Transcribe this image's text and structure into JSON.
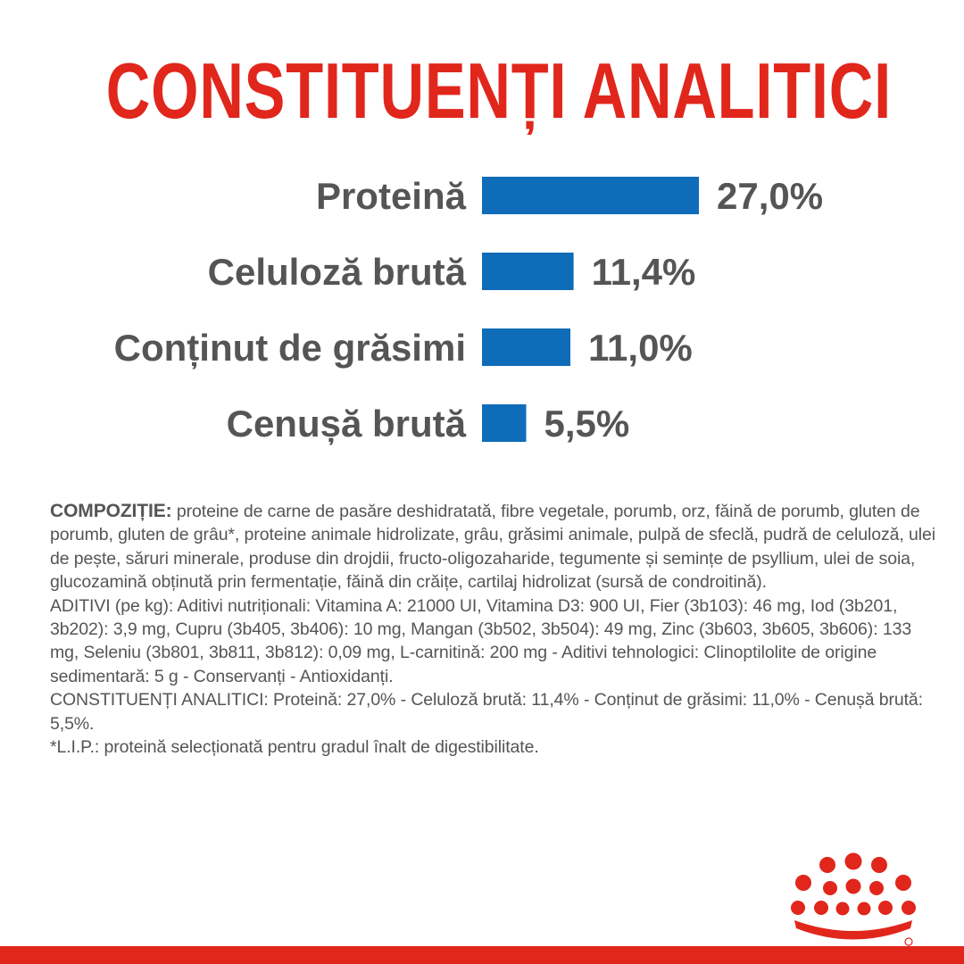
{
  "title": "CONSTITUENȚI ANALITICI",
  "colors": {
    "title": "#e1261c",
    "bar": "#0f6cb8",
    "text": "#555555",
    "brand_red": "#e1261c"
  },
  "chart_data": {
    "type": "bar",
    "orientation": "horizontal",
    "title": "CONSTITUENȚI ANALITICI",
    "categories": [
      "Proteină",
      "Celuloză brută",
      "Conținut de grăsimi",
      "Cenușă brută"
    ],
    "values": [
      27.0,
      11.4,
      11.0,
      5.5
    ],
    "value_labels": [
      "27,0%",
      "11,4%",
      "11,0%",
      "5,5%"
    ],
    "unit": "%",
    "xlabel": "",
    "ylabel": "",
    "grid": false,
    "legend": "none"
  },
  "composition": {
    "heading": "COMPOZIȚIE:",
    "ingredients": " proteine de carne de pasăre deshidratată, fibre vegetale, porumb, orz, făină de porumb, gluten de porumb, gluten de grâu*, proteine animale hidrolizate, grâu, grăsimi animale, pulpă de sfeclă, pudră de celuloză, ulei de pește, săruri minerale, produse din drojdii, fructo-oligozaharide, tegumente și semințe de psyllium, ulei de soia, glucozamină obținută prin fermentație, făină din crăițe, cartilaj hidrolizat (sursă de condroitină).",
    "additives": "ADITIVI (pe kg): Aditivi nutriționali: Vitamina A: 21000 UI, Vitamina D3: 900 UI, Fier (3b103): 46 mg, Iod (3b201, 3b202): 3,9 mg, Cupru (3b405, 3b406): 10 mg, Mangan (3b502, 3b504): 49 mg, Zinc (3b603, 3b605, 3b606): 133 mg, Seleniu (3b801, 3b811, 3b812): 0,09 mg, L-carnitină: 200 mg - Aditivi tehnologici: Clinoptilolite de origine sedimentară: 5 g - Conservanți - Antioxidanți.",
    "analytical": "CONSTITUENȚI ANALITICI: Proteină: 27,0% - Celuloză brută: 11,4% - Conținut de grăsimi: 11,0% - Cenușă brută: 5,5%.",
    "footnote": "*L.I.P.: proteină selecționată pentru gradul înalt de digestibilitate."
  },
  "logo": {
    "icon": "royal-canin-crown-icon"
  }
}
